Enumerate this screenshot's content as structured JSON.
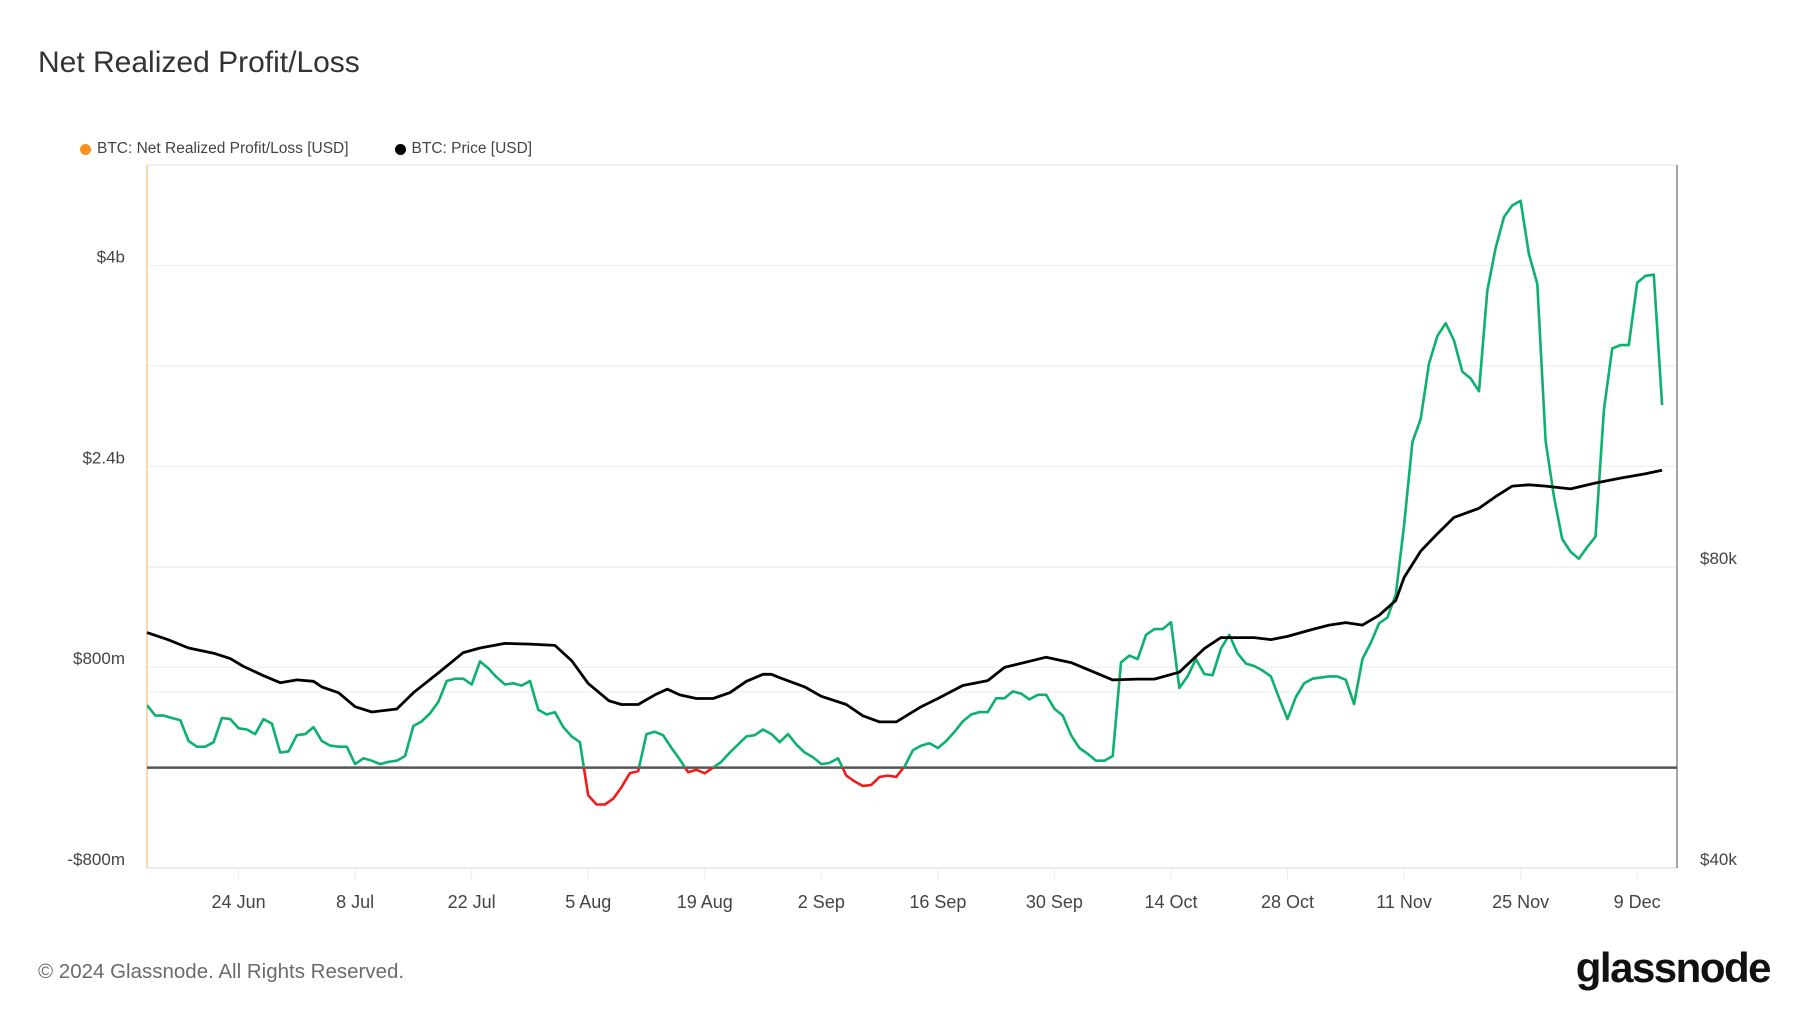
{
  "title": "Net Realized Profit/Loss",
  "footer": "© 2024 Glassnode. All Rights Reserved.",
  "logo_text": "glassnode",
  "colors": {
    "profit": "#0bb16c",
    "loss": "#ee1c1c",
    "price": "#000000",
    "legend_nrpl": "#f7931a",
    "zero_line": "#555555"
  },
  "chart_data": {
    "type": "line",
    "title": "Net Realized Profit/Loss",
    "legend": [
      {
        "name": "BTC: Net Realized Profit/Loss [USD]",
        "color": "#f7931a"
      },
      {
        "name": "BTC: Price [USD]",
        "color": "#000000"
      }
    ],
    "legend_position": "top-left",
    "start_date": "2024-06-13",
    "end_date": "2024-12-12",
    "x_tick_labels": [
      "24 Jun",
      "8 Jul",
      "22 Jul",
      "5 Aug",
      "19 Aug",
      "2 Sep",
      "16 Sep",
      "30 Sep",
      "14 Oct",
      "28 Oct",
      "11 Nov",
      "25 Nov",
      "9 Dec"
    ],
    "x_tick_days": [
      11,
      25,
      39,
      53,
      67,
      81,
      95,
      109,
      123,
      137,
      151,
      165,
      179
    ],
    "y_left": {
      "label": "BTC: Net Realized Profit/Loss [USD] (millions)",
      "ylim": [
        -800,
        4800
      ],
      "ticks": [
        -800,
        800,
        2400,
        4000
      ],
      "tick_labels": [
        "-$800m",
        "$800m",
        "$2.4b",
        "$4b"
      ],
      "grid_step": 800
    },
    "y_right": {
      "label": "BTC: Price [USD]",
      "scale": "log",
      "ylim": [
        40000,
        202000
      ],
      "ticks": [
        40000,
        80000
      ],
      "tick_labels": [
        "$40k",
        "$80k"
      ],
      "grid": [
        60000,
        80000
      ]
    },
    "series": [
      {
        "name": "BTC: Net Realized Profit/Loss [USD]",
        "axis": "left",
        "unit": "USD millions",
        "interval_days": 1,
        "values": [
          497,
          414,
          414,
          395,
          377,
          212,
          166,
          166,
          202,
          395,
          386,
          313,
          303,
          267,
          386,
          350,
          120,
          129,
          258,
          267,
          322,
          212,
          175,
          166,
          166,
          28,
          74,
          55,
          28,
          45,
          55,
          92,
          331,
          368,
          432,
          524,
          690,
          708,
          708,
          662,
          846,
          791,
          720,
          662,
          671,
          653,
          690,
          460,
          423,
          441,
          322,
          248,
          202,
          -221,
          -294,
          -294,
          -248,
          -156,
          -46,
          -28,
          267,
          285,
          258,
          156,
          64,
          -37,
          -18,
          -46,
          0,
          46,
          120,
          184,
          248,
          258,
          303,
          267,
          202,
          267,
          184,
          120,
          83,
          28,
          37,
          74,
          -64,
          -110,
          -147,
          -138,
          -74,
          -64,
          -74,
          9,
          138,
          175,
          193,
          156,
          212,
          285,
          368,
          423,
          442,
          442,
          552,
          552,
          607,
          589,
          543,
          580,
          580,
          469,
          414,
          258,
          156,
          110,
          55,
          55,
          92,
          837,
          892,
          864,
          1057,
          1103,
          1103,
          1158,
          634,
          726,
          864,
          745,
          736,
          947,
          1057,
          910,
          828,
          809,
          773,
          726,
          552,
          386,
          561,
          671,
          708,
          717,
          726,
          726,
          699,
          506,
          864,
          993,
          1149,
          1195,
          1379,
          1931,
          2593,
          2777,
          3218,
          3439,
          3540,
          3402,
          3154,
          3099,
          2998,
          3798,
          4138,
          4386,
          4478,
          4515,
          4092,
          3853,
          2602,
          2161,
          1821,
          1719,
          1664,
          1756,
          1839,
          2850,
          3338,
          3365,
          3365,
          3862,
          3917,
          3926,
          2887
        ]
      },
      {
        "name": "BTC: Price [USD]",
        "axis": "right",
        "unit": "USD",
        "points": [
          [
            0,
            68800
          ],
          [
            2.5,
            67700
          ],
          [
            5,
            66400
          ],
          [
            8,
            65600
          ],
          [
            10,
            64800
          ],
          [
            11.5,
            63700
          ],
          [
            14,
            62300
          ],
          [
            16,
            61300
          ],
          [
            18,
            61700
          ],
          [
            20,
            61500
          ],
          [
            21,
            60700
          ],
          [
            23,
            59900
          ],
          [
            25,
            58000
          ],
          [
            27,
            57300
          ],
          [
            30,
            57700
          ],
          [
            32,
            59900
          ],
          [
            35,
            62700
          ],
          [
            38,
            65700
          ],
          [
            40,
            66400
          ],
          [
            43,
            67100
          ],
          [
            46,
            67000
          ],
          [
            49,
            66800
          ],
          [
            51,
            64500
          ],
          [
            53,
            61200
          ],
          [
            55.5,
            58800
          ],
          [
            57,
            58300
          ],
          [
            59,
            58300
          ],
          [
            61,
            59600
          ],
          [
            62.5,
            60400
          ],
          [
            64,
            59600
          ],
          [
            66,
            59100
          ],
          [
            68,
            59100
          ],
          [
            70,
            59900
          ],
          [
            72,
            61500
          ],
          [
            74,
            62500
          ],
          [
            75,
            62500
          ],
          [
            76,
            62000
          ],
          [
            79,
            60700
          ],
          [
            81,
            59400
          ],
          [
            84,
            58300
          ],
          [
            86,
            56800
          ],
          [
            88,
            56000
          ],
          [
            90,
            56000
          ],
          [
            93,
            58000
          ],
          [
            95,
            59100
          ],
          [
            98,
            60900
          ],
          [
            101,
            61600
          ],
          [
            103,
            63500
          ],
          [
            106,
            64400
          ],
          [
            108,
            65000
          ],
          [
            111,
            64200
          ],
          [
            114,
            62700
          ],
          [
            116,
            61700
          ],
          [
            119,
            61800
          ],
          [
            121,
            61800
          ],
          [
            124,
            62800
          ],
          [
            127,
            66300
          ],
          [
            129,
            68000
          ],
          [
            132,
            68000
          ],
          [
            133,
            68000
          ],
          [
            135,
            67700
          ],
          [
            137,
            68200
          ],
          [
            140,
            69300
          ],
          [
            142,
            70000
          ],
          [
            144,
            70400
          ],
          [
            146,
            70000
          ],
          [
            148,
            71600
          ],
          [
            150,
            74100
          ],
          [
            151,
            78100
          ],
          [
            153,
            83000
          ],
          [
            155,
            86400
          ],
          [
            157,
            89700
          ],
          [
            160,
            91600
          ],
          [
            162,
            94100
          ],
          [
            164,
            96400
          ],
          [
            166,
            96700
          ],
          [
            168,
            96400
          ],
          [
            171,
            95800
          ],
          [
            174,
            97100
          ],
          [
            177,
            98200
          ],
          [
            180,
            99200
          ],
          [
            182,
            100000
          ]
        ]
      }
    ]
  }
}
